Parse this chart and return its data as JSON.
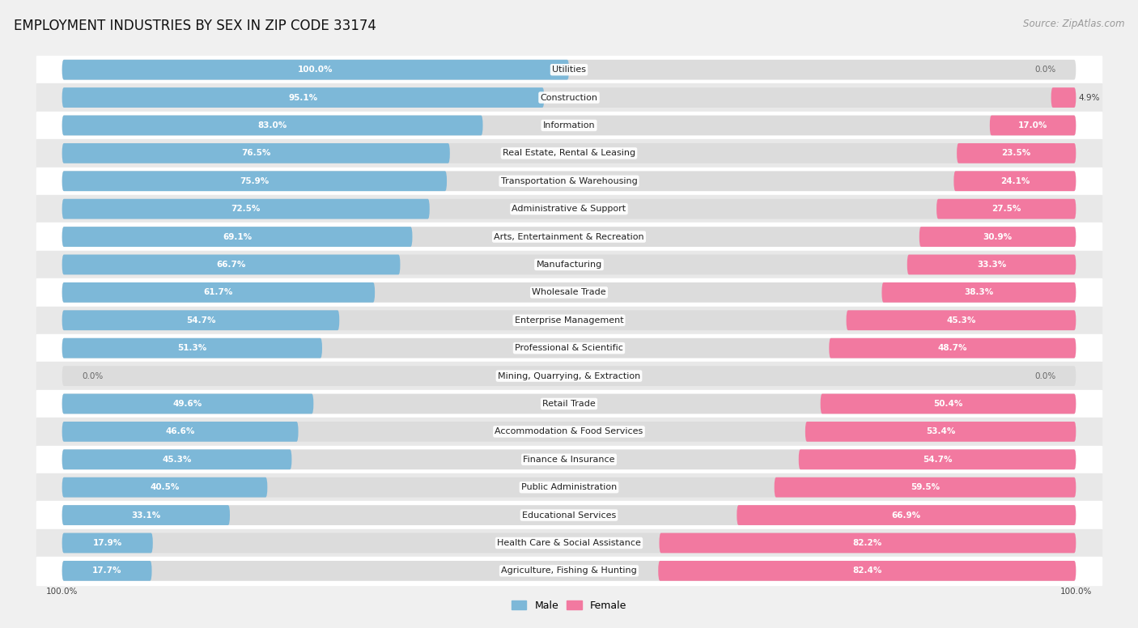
{
  "title": "EMPLOYMENT INDUSTRIES BY SEX IN ZIP CODE 33174",
  "source": "Source: ZipAtlas.com",
  "categories": [
    "Utilities",
    "Construction",
    "Information",
    "Real Estate, Rental & Leasing",
    "Transportation & Warehousing",
    "Administrative & Support",
    "Arts, Entertainment & Recreation",
    "Manufacturing",
    "Wholesale Trade",
    "Enterprise Management",
    "Professional & Scientific",
    "Mining, Quarrying, & Extraction",
    "Retail Trade",
    "Accommodation & Food Services",
    "Finance & Insurance",
    "Public Administration",
    "Educational Services",
    "Health Care & Social Assistance",
    "Agriculture, Fishing & Hunting"
  ],
  "male_pct": [
    100.0,
    95.1,
    83.0,
    76.5,
    75.9,
    72.5,
    69.1,
    66.7,
    61.7,
    54.7,
    51.3,
    0.0,
    49.6,
    46.6,
    45.3,
    40.5,
    33.1,
    17.9,
    17.7
  ],
  "female_pct": [
    0.0,
    4.9,
    17.0,
    23.5,
    24.1,
    27.5,
    30.9,
    33.3,
    38.3,
    45.3,
    48.7,
    0.0,
    50.4,
    53.4,
    54.7,
    59.5,
    66.9,
    82.2,
    82.4
  ],
  "male_color": "#7db8d8",
  "female_color": "#f279a0",
  "bg_color": "#f0f0f0",
  "row_bg_even": "#ffffff",
  "row_bg_odd": "#e8e8e8",
  "pill_bg": "#dcdcdc",
  "title_fontsize": 12,
  "source_fontsize": 8.5,
  "label_fontsize": 8,
  "pct_fontsize": 7.5,
  "legend_fontsize": 9
}
